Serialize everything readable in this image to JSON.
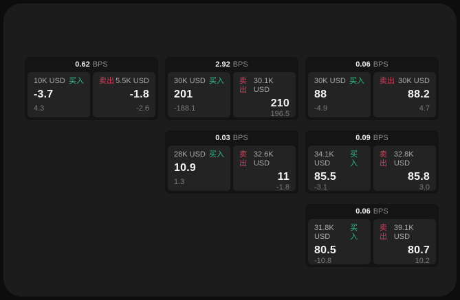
{
  "labels": {
    "bps_unit": "BPS",
    "buy": "买入",
    "sell": "卖出"
  },
  "colors": {
    "buy": "#2ebd85",
    "sell": "#d33f5a",
    "window_bg": "#1c1c1c",
    "card_bg": "#141414",
    "panel_bg": "#232323"
  },
  "cards": [
    {
      "row": 1,
      "col": 1,
      "bps": "0.62",
      "buy": {
        "size": "10K USD",
        "price": "-3.7",
        "delta": "4.3"
      },
      "sell": {
        "size": "5.5K USD",
        "price": "-1.8",
        "delta": "-2.6"
      }
    },
    {
      "row": 1,
      "col": 2,
      "bps": "2.92",
      "buy": {
        "size": "30K USD",
        "price": "201",
        "delta": "-188.1"
      },
      "sell": {
        "size": "30.1K USD",
        "price": "210",
        "delta": "196.5"
      }
    },
    {
      "row": 1,
      "col": 3,
      "bps": "0.06",
      "buy": {
        "size": "30K USD",
        "price": "88",
        "delta": "-4.9"
      },
      "sell": {
        "size": "30K USD",
        "price": "88.2",
        "delta": "4.7"
      }
    },
    {
      "row": 2,
      "col": 2,
      "bps": "0.03",
      "buy": {
        "size": "28K USD",
        "price": "10.9",
        "delta": "1.3"
      },
      "sell": {
        "size": "32.6K USD",
        "price": "11",
        "delta": "-1.8"
      }
    },
    {
      "row": 2,
      "col": 3,
      "bps": "0.09",
      "buy": {
        "size": "34.1K USD",
        "price": "85.5",
        "delta": "-3.1"
      },
      "sell": {
        "size": "32.8K USD",
        "price": "85.8",
        "delta": "3.0"
      }
    },
    {
      "row": 3,
      "col": 3,
      "bps": "0.06",
      "buy": {
        "size": "31.8K USD",
        "price": "80.5",
        "delta": "-10.8"
      },
      "sell": {
        "size": "39.1K USD",
        "price": "80.7",
        "delta": "10.2"
      }
    }
  ]
}
